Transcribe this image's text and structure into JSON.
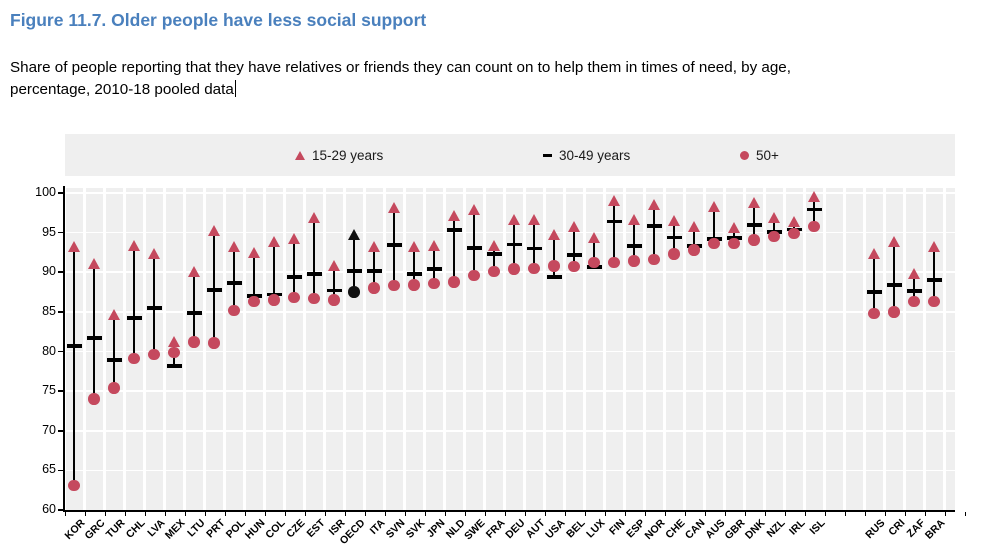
{
  "title": "Figure 11.7. Older people have less social support",
  "subtitle_line1": "Share of people reporting that they have relatives or friends they can count on to help them in times of need, by age,",
  "subtitle_line2": "percentage, 2010-18 pooled data",
  "legend": [
    {
      "label": "15-29 years",
      "marker": "triangle"
    },
    {
      "label": "30-49 years",
      "marker": "dash"
    },
    {
      "label": "50+",
      "marker": "circle"
    }
  ],
  "colors": {
    "accent_rose": "#c5495e",
    "emphasis_black": "#111111",
    "title_blue": "#4a80bd",
    "plot_band_gray": "#efefef",
    "axis_black": "#000000"
  },
  "chart_data": {
    "type": "scatter",
    "title": "Figure 11.7. Older people have less social support",
    "ylabel": "percentage",
    "ylim": [
      60,
      100
    ],
    "ytick_step": 5,
    "ytick_labels": [
      "60",
      "65",
      "70",
      "75",
      "80",
      "85",
      "90",
      "95",
      "100"
    ],
    "grid": "on",
    "legend_position": "top",
    "series_names": [
      "15-29 years",
      "30-49 years",
      "50+"
    ],
    "gap_after_index": 37,
    "gap_slots": 2,
    "points": [
      {
        "code": "KOR",
        "young": 93.2,
        "mid": 80.7,
        "old": 63.1
      },
      {
        "code": "GRC",
        "young": 91.1,
        "mid": 81.7,
        "old": 74.0
      },
      {
        "code": "TUR",
        "young": 84.7,
        "mid": 78.9,
        "old": 75.4
      },
      {
        "code": "CHL",
        "young": 93.4,
        "mid": 84.2,
        "old": 79.1
      },
      {
        "code": "LVA",
        "young": 92.4,
        "mid": 85.5,
        "old": 79.6
      },
      {
        "code": "MEX",
        "young": 81.3,
        "mid": 78.2,
        "old": 79.9
      },
      {
        "code": "LTU",
        "young": 90.1,
        "mid": 84.9,
        "old": 81.2
      },
      {
        "code": "PRT",
        "young": 95.3,
        "mid": 87.8,
        "old": 81.1
      },
      {
        "code": "POL",
        "young": 93.2,
        "mid": 88.6,
        "old": 85.2
      },
      {
        "code": "HUN",
        "young": 92.5,
        "mid": 87.0,
        "old": 86.3
      },
      {
        "code": "COL",
        "young": 93.9,
        "mid": 87.2,
        "old": 86.5
      },
      {
        "code": "CZE",
        "young": 94.2,
        "mid": 89.4,
        "old": 86.8
      },
      {
        "code": "EST",
        "young": 96.9,
        "mid": 89.8,
        "old": 86.7
      },
      {
        "code": "ISR",
        "young": 90.9,
        "mid": 87.7,
        "old": 86.5
      },
      {
        "code": "OECD",
        "young": 94.8,
        "mid": 90.2,
        "old": 87.5,
        "emphasis": true
      },
      {
        "code": "ITA",
        "young": 93.3,
        "mid": 90.2,
        "old": 88.0
      },
      {
        "code": "SVN",
        "young": 98.2,
        "mid": 93.4,
        "old": 88.3
      },
      {
        "code": "SVK",
        "young": 93.2,
        "mid": 89.8,
        "old": 88.4
      },
      {
        "code": "JPN",
        "young": 93.4,
        "mid": 90.4,
        "old": 88.6
      },
      {
        "code": "NLD",
        "young": 97.1,
        "mid": 95.3,
        "old": 88.8
      },
      {
        "code": "SWE",
        "young": 97.9,
        "mid": 93.1,
        "old": 89.6
      },
      {
        "code": "FRA",
        "young": 93.4,
        "mid": 92.3,
        "old": 90.1
      },
      {
        "code": "DEU",
        "young": 96.7,
        "mid": 93.5,
        "old": 90.4
      },
      {
        "code": "AUT",
        "young": 96.6,
        "mid": 93.0,
        "old": 90.5
      },
      {
        "code": "USA",
        "young": 94.8,
        "mid": 89.4,
        "old": 90.8
      },
      {
        "code": "BEL",
        "young": 95.8,
        "mid": 92.2,
        "old": 90.7
      },
      {
        "code": "LUX",
        "young": 94.4,
        "mid": 90.7,
        "old": 91.2
      },
      {
        "code": "FIN",
        "young": 99.1,
        "mid": 96.4,
        "old": 91.2
      },
      {
        "code": "ESP",
        "young": 96.6,
        "mid": 93.3,
        "old": 91.4
      },
      {
        "code": "NOR",
        "young": 98.5,
        "mid": 95.8,
        "old": 91.6
      },
      {
        "code": "CHE",
        "young": 96.5,
        "mid": 94.4,
        "old": 92.3
      },
      {
        "code": "CAN",
        "young": 95.8,
        "mid": 93.3,
        "old": 92.8
      },
      {
        "code": "AUS",
        "young": 98.3,
        "mid": 94.2,
        "old": 93.6
      },
      {
        "code": "GBR",
        "young": 95.7,
        "mid": 94.3,
        "old": 93.6
      },
      {
        "code": "DNK",
        "young": 98.8,
        "mid": 96.0,
        "old": 94.1
      },
      {
        "code": "NZL",
        "young": 96.9,
        "mid": 95.1,
        "old": 94.5
      },
      {
        "code": "IRL",
        "young": 96.4,
        "mid": 95.4,
        "old": 94.9
      },
      {
        "code": "ISL",
        "young": 99.6,
        "mid": 97.9,
        "old": 95.8
      },
      {
        "code": "RUS",
        "young": 92.4,
        "mid": 87.5,
        "old": 84.8
      },
      {
        "code": "CRI",
        "young": 93.9,
        "mid": 88.4,
        "old": 85.0
      },
      {
        "code": "ZAF",
        "young": 89.8,
        "mid": 87.6,
        "old": 86.3
      },
      {
        "code": "BRA",
        "young": 93.2,
        "mid": 89.0,
        "old": 86.3
      }
    ]
  }
}
